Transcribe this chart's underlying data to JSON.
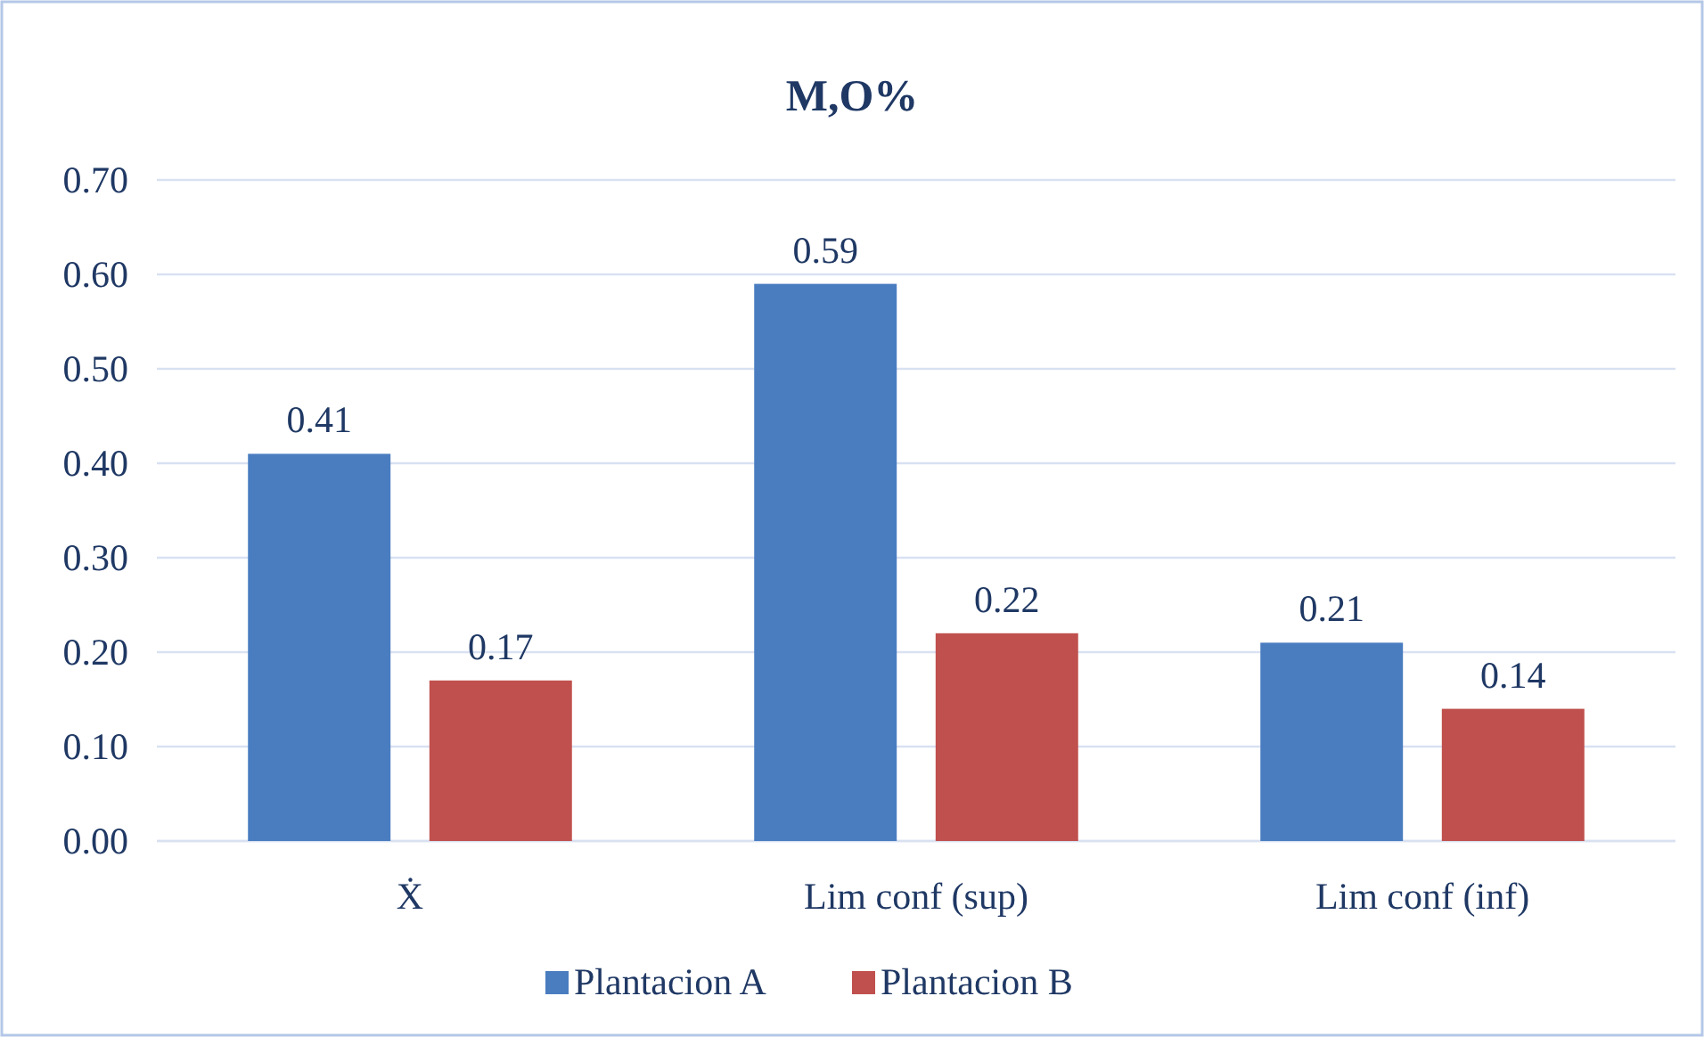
{
  "chart_data": {
    "type": "bar",
    "title": "M,O%",
    "categories": [
      "Ẋ",
      "Lim conf (sup)",
      "Lim conf (inf)"
    ],
    "series": [
      {
        "name": "Plantacion A",
        "color": "#4a7dc0",
        "values": [
          0.41,
          0.59,
          0.21
        ]
      },
      {
        "name": "Plantacion B",
        "color": "#c0504d",
        "values": [
          0.17,
          0.22,
          0.14
        ]
      }
    ],
    "ylim": [
      0,
      0.7
    ],
    "yticks": [
      {
        "value": 0,
        "label": "0.00"
      },
      {
        "value": 0.1,
        "label": "0.10"
      },
      {
        "value": 0.2,
        "label": "0.20"
      },
      {
        "value": 0.3,
        "label": "0.30"
      },
      {
        "value": 0.4,
        "label": "0.40"
      },
      {
        "value": 0.5,
        "label": "0.50"
      },
      {
        "value": 0.6,
        "label": "0.60"
      },
      {
        "value": 0.7,
        "label": "0.70"
      }
    ],
    "grid": "y",
    "legend": "bottom",
    "data_labels": true
  }
}
